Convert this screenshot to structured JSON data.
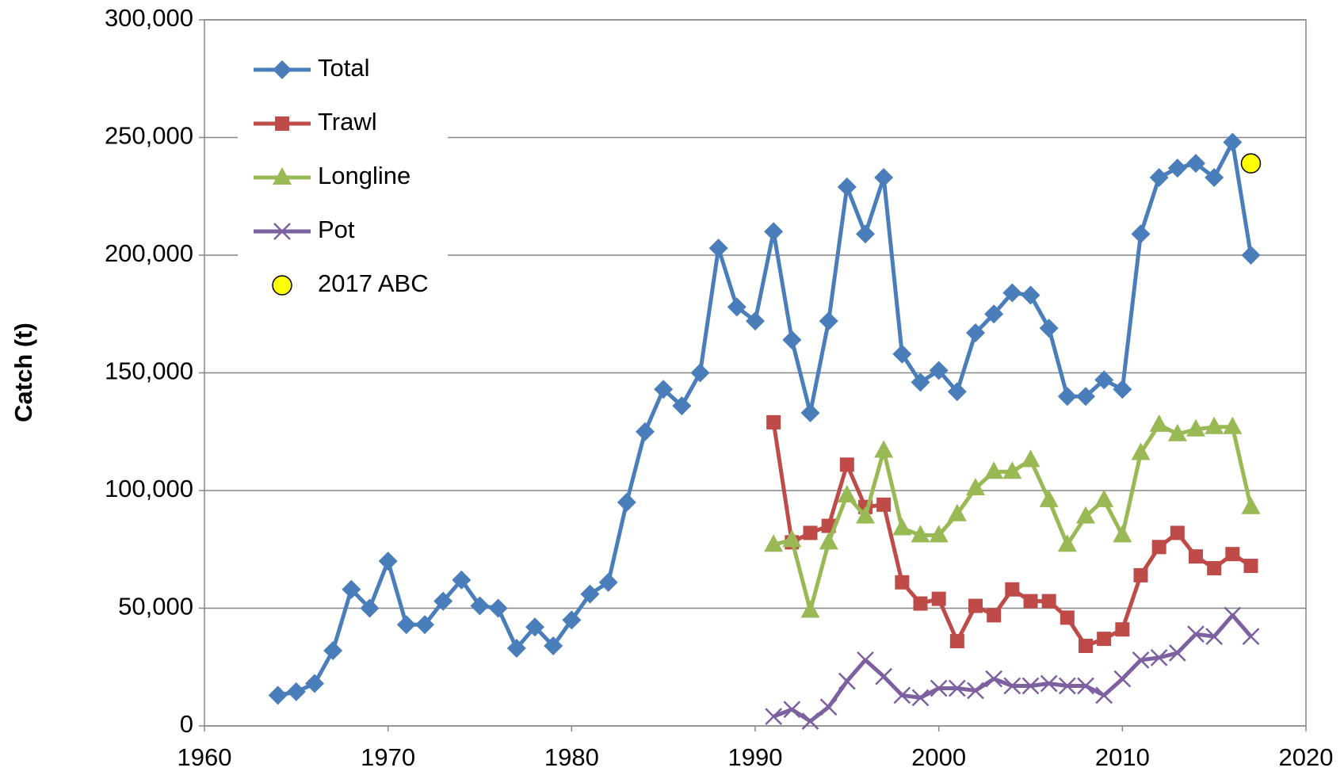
{
  "chart_data": {
    "type": "line",
    "y_label": "Catch (t)",
    "xlim": [
      1960,
      2020
    ],
    "xticks": [
      1960,
      1970,
      1980,
      1990,
      2000,
      2010,
      2020
    ],
    "ylim": [
      0,
      300000
    ],
    "yticks": [
      0,
      {
        "value": 50000,
        "label": "50,000"
      },
      {
        "value": 100000,
        "label": "100,000"
      },
      {
        "value": 150000,
        "label": "150,000"
      },
      {
        "value": 200000,
        "label": "200,000"
      },
      {
        "value": 250000,
        "label": "250,000"
      },
      {
        "value": 300000,
        "label": "300,000"
      }
    ],
    "grid": true,
    "legend": "top-left",
    "series": [
      {
        "name": "Total",
        "color": "#4a7ebb",
        "marker": "diamond",
        "x": [
          1964,
          1965,
          1966,
          1967,
          1968,
          1969,
          1970,
          1971,
          1972,
          1973,
          1974,
          1975,
          1976,
          1977,
          1978,
          1979,
          1980,
          1981,
          1982,
          1983,
          1984,
          1985,
          1986,
          1987,
          1988,
          1989,
          1990,
          1991,
          1992,
          1993,
          1994,
          1995,
          1996,
          1997,
          1998,
          1999,
          2000,
          2001,
          2002,
          2003,
          2004,
          2005,
          2006,
          2007,
          2008,
          2009,
          2010,
          2011,
          2012,
          2013,
          2014,
          2015,
          2016,
          2017
        ],
        "values": [
          13000,
          14500,
          18000,
          32000,
          58000,
          50000,
          70000,
          43000,
          43000,
          53000,
          62000,
          51000,
          50000,
          33000,
          42000,
          34000,
          45000,
          56000,
          61000,
          95000,
          125000,
          143000,
          136000,
          150000,
          203000,
          178000,
          172000,
          210000,
          164000,
          133000,
          172000,
          229000,
          209000,
          233000,
          158000,
          146000,
          151000,
          142000,
          167000,
          175000,
          184000,
          183000,
          169000,
          140000,
          140000,
          147000,
          143000,
          209000,
          233000,
          237000,
          239000,
          233000,
          248000,
          200000
        ]
      },
      {
        "name": "Trawl",
        "color": "#be4b48",
        "marker": "square",
        "x": [
          1991,
          1992,
          1993,
          1994,
          1995,
          1996,
          1997,
          1998,
          1999,
          2000,
          2001,
          2002,
          2003,
          2004,
          2005,
          2006,
          2007,
          2008,
          2009,
          2010,
          2011,
          2012,
          2013,
          2014,
          2015,
          2016,
          2017
        ],
        "values": [
          129000,
          78000,
          82000,
          85000,
          111000,
          93000,
          94000,
          61000,
          52000,
          54000,
          36000,
          51000,
          47000,
          58000,
          53000,
          53000,
          46000,
          34000,
          37000,
          41000,
          64000,
          76000,
          82000,
          72000,
          67000,
          73000,
          68000
        ]
      },
      {
        "name": "Longline",
        "color": "#98b954",
        "marker": "triangle",
        "x": [
          1991,
          1992,
          1993,
          1994,
          1995,
          1996,
          1997,
          1998,
          1999,
          2000,
          2001,
          2002,
          2003,
          2004,
          2005,
          2006,
          2007,
          2008,
          2009,
          2010,
          2011,
          2012,
          2013,
          2014,
          2015,
          2016,
          2017
        ],
        "values": [
          77000,
          79000,
          49000,
          78000,
          98000,
          89000,
          117000,
          84000,
          81000,
          81000,
          90000,
          101000,
          108000,
          108000,
          113000,
          96000,
          77000,
          89000,
          96000,
          81000,
          116000,
          128000,
          124000,
          126000,
          127000,
          127000,
          93000
        ]
      },
      {
        "name": "Pot",
        "color": "#7d60a0",
        "marker": "x",
        "x": [
          1991,
          1992,
          1993,
          1994,
          1995,
          1996,
          1997,
          1998,
          1999,
          2000,
          2001,
          2002,
          2003,
          2004,
          2005,
          2006,
          2007,
          2008,
          2009,
          2010,
          2011,
          2012,
          2013,
          2014,
          2015,
          2016,
          2017
        ],
        "values": [
          4000,
          7000,
          2000,
          8000,
          19000,
          28000,
          21000,
          13000,
          12000,
          16000,
          16000,
          15000,
          20000,
          17000,
          17000,
          18000,
          17000,
          17000,
          13000,
          20000,
          28000,
          29000,
          31000,
          39000,
          38000,
          47000,
          38000
        ]
      },
      {
        "name": "2017 ABC",
        "color": "#ffff00",
        "marker": "circle",
        "line": false,
        "x": [
          2017
        ],
        "values": [
          239000
        ]
      }
    ]
  }
}
